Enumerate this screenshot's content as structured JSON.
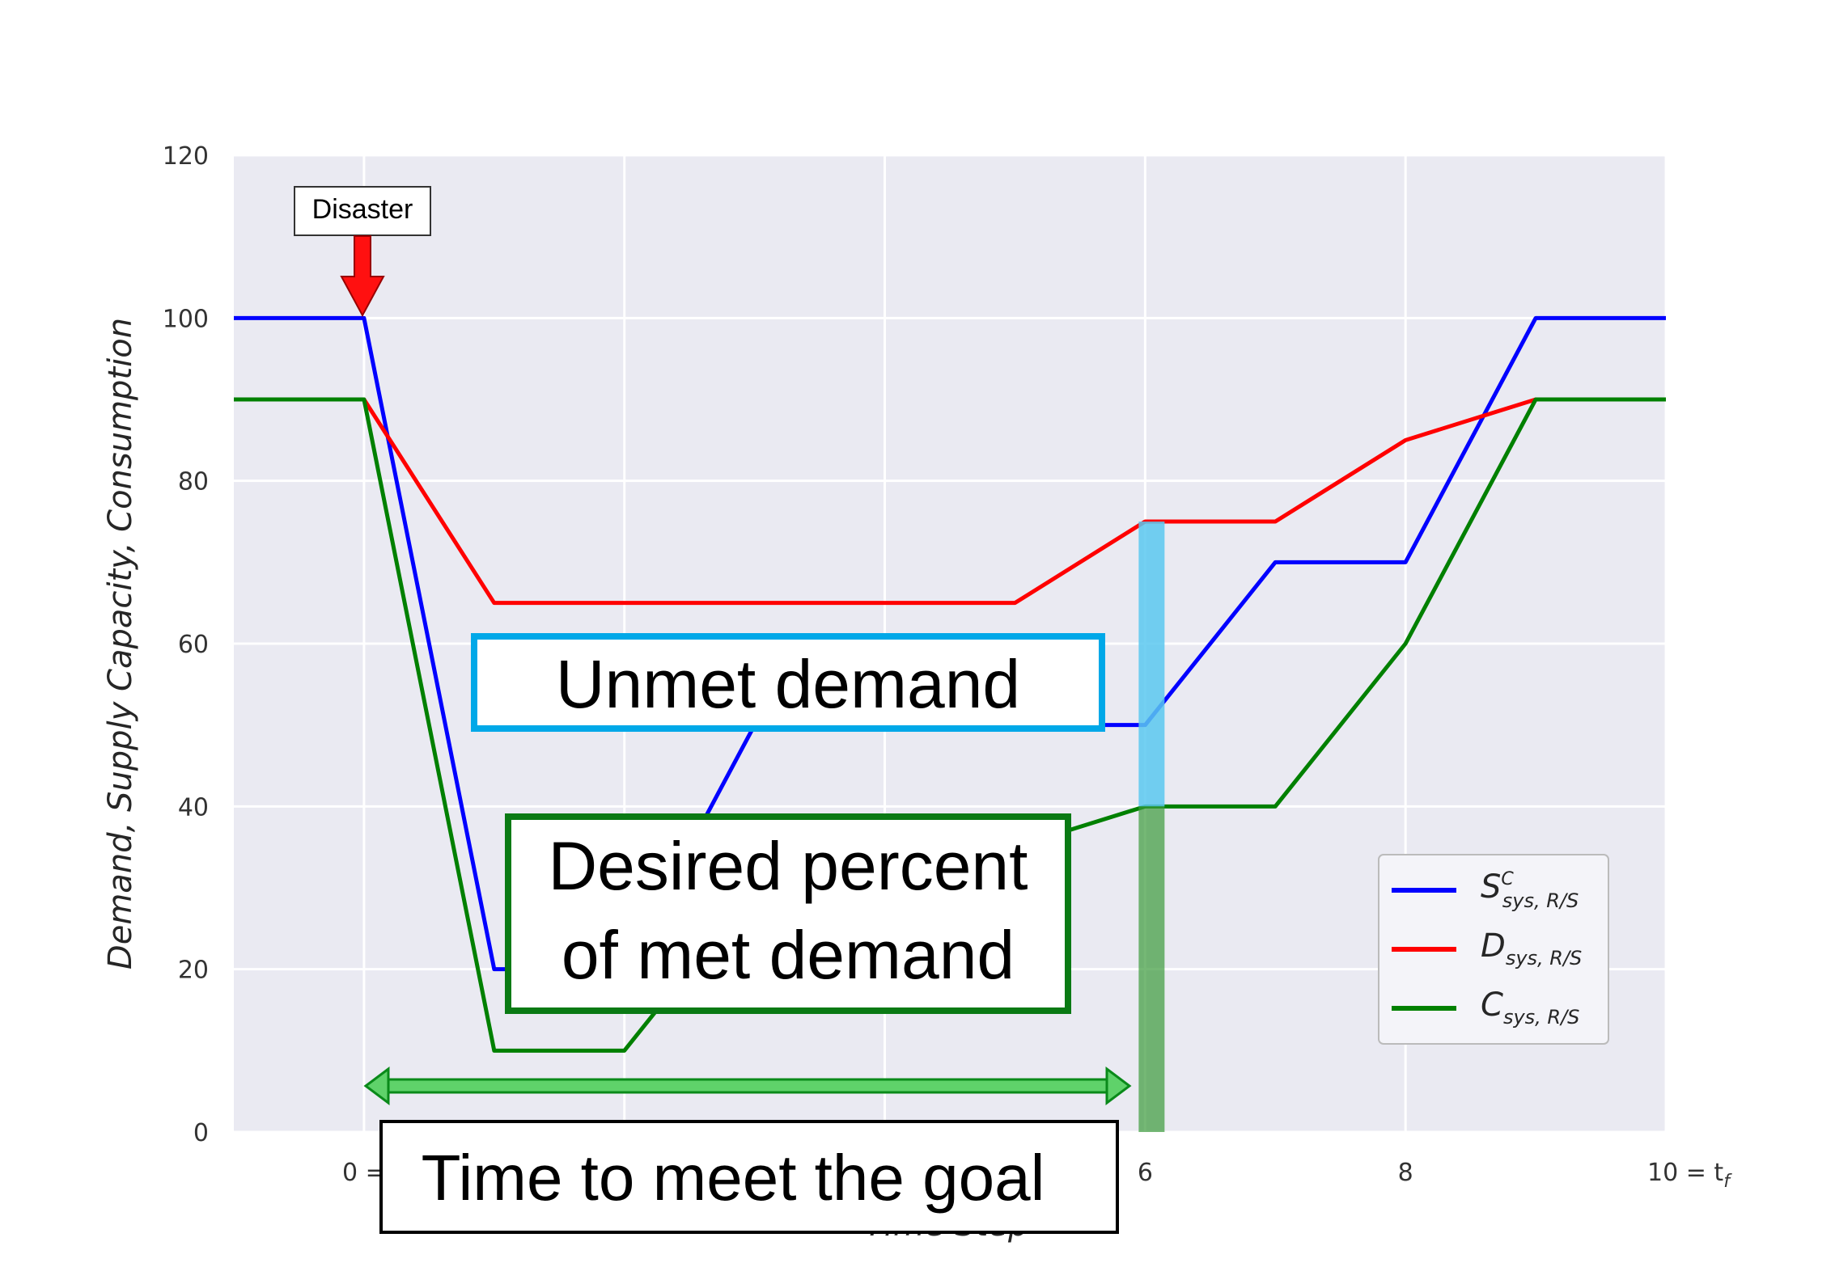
{
  "chart_data": {
    "type": "line",
    "title": "",
    "xlabel": "Time Step",
    "ylabel": "Demand,  Supply Capacity,  Consumption",
    "xlim": [
      -1,
      10
    ],
    "ylim": [
      0,
      120
    ],
    "grid": true,
    "legend_position": "lower-right",
    "x_ticks": [
      {
        "value": 0,
        "label": "0 ="
      },
      {
        "value": 6,
        "label": "6"
      },
      {
        "value": 8,
        "label": "8"
      },
      {
        "value": 10,
        "label": "10 = t"
      }
    ],
    "x_tick_subscript": "f",
    "y_ticks": [
      0,
      20,
      40,
      60,
      80,
      100,
      120
    ],
    "x": [
      -1,
      0,
      1,
      2,
      3,
      4,
      5,
      6,
      7,
      8,
      9,
      10
    ],
    "series": [
      {
        "name": "S",
        "sup": "C",
        "sub": "sys, R/S",
        "color": "#0000ff",
        "values": [
          100,
          100,
          20,
          20,
          50,
          50,
          50,
          50,
          70,
          70,
          100,
          100
        ]
      },
      {
        "name": "D",
        "sup": "",
        "sub": "sys, R/S",
        "color": "#ff0000",
        "values": [
          90,
          90,
          65,
          65,
          65,
          65,
          65,
          75,
          75,
          85,
          90,
          90
        ]
      },
      {
        "name": "C",
        "sup": "",
        "sub": "sys, R/S",
        "color": "#008000",
        "values": [
          90,
          90,
          10,
          10,
          30,
          35,
          35,
          40,
          40,
          60,
          90,
          90
        ]
      }
    ],
    "annotations": {
      "disaster": "Disaster",
      "unmet": "Unmet demand",
      "desired_line1": "Desired percent",
      "desired_line2": "of met demand",
      "time_goal": "Time to meet the goal"
    }
  }
}
